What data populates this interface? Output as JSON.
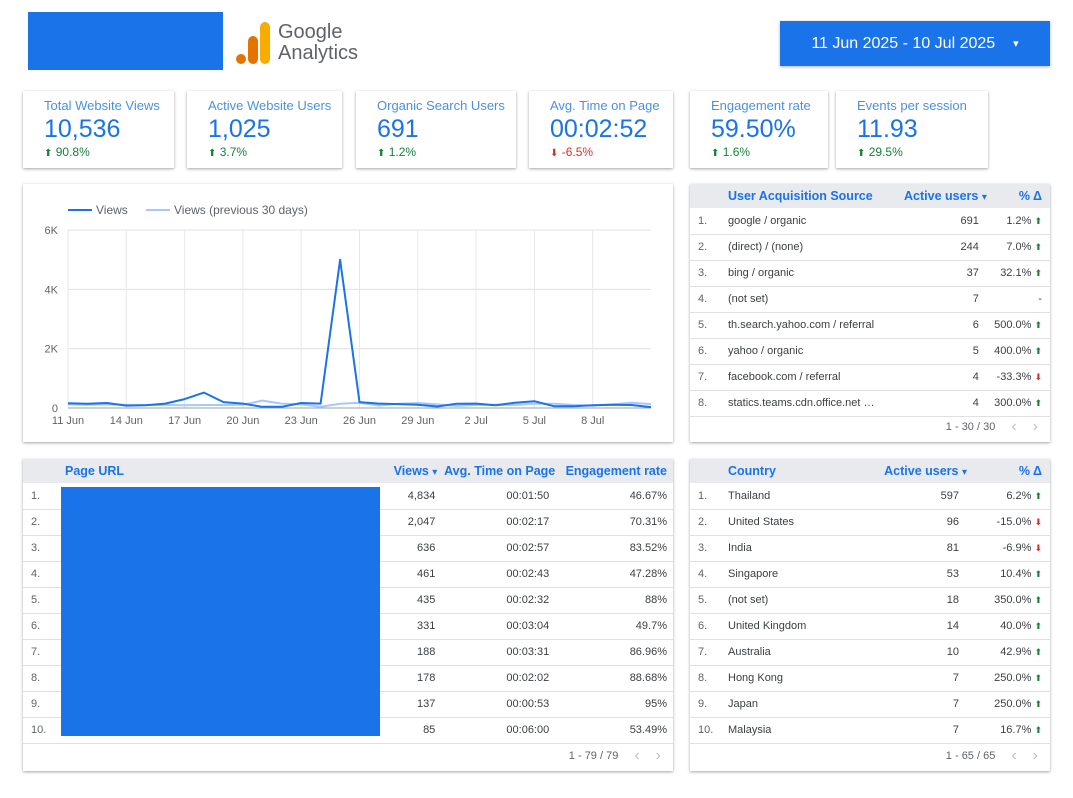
{
  "header": {
    "logo_text_line1": "Google",
    "logo_text_line2": "Analytics",
    "date_range": "11 Jun 2025 - 10 Jul 2025",
    "caret": "▾"
  },
  "kpis": [
    {
      "title": "Total Website Views",
      "value": "10,536",
      "delta": "90.8%",
      "dir": "up"
    },
    {
      "title": "Active Website Users",
      "value": "1,025",
      "delta": "3.7%",
      "dir": "up"
    },
    {
      "title": "Organic Search Users",
      "value": "691",
      "delta": "1.2%",
      "dir": "up"
    },
    {
      "title": "Avg. Time on Page",
      "value": "00:02:52",
      "delta": "-6.5%",
      "dir": "down"
    },
    {
      "title": "Engagement rate",
      "value": "59.50%",
      "delta": "1.6%",
      "dir": "up"
    },
    {
      "title": "Events per session",
      "value": "11.93",
      "delta": "29.5%",
      "dir": "up"
    }
  ],
  "colors": {
    "accent": "#1a73e8",
    "previous": "#a8c7fa",
    "up": "#188038",
    "down": "#d93025"
  },
  "chart_data": {
    "type": "line",
    "legend": [
      "Views",
      "Views (previous 30 days)"
    ],
    "legend_position": "top-left",
    "ylim": [
      0,
      6000
    ],
    "yticks": [
      "0",
      "2K",
      "4K",
      "6K"
    ],
    "xtick_labels": [
      "11 Jun",
      "14 Jun",
      "17 Jun",
      "20 Jun",
      "23 Jun",
      "26 Jun",
      "29 Jun",
      "2 Jul",
      "5 Jul",
      "8 Jul"
    ],
    "grid": true,
    "series": [
      {
        "name": "Views",
        "values": [
          160,
          140,
          170,
          80,
          90,
          150,
          300,
          520,
          200,
          150,
          40,
          40,
          170,
          150,
          5000,
          200,
          150,
          130,
          110,
          50,
          140,
          150,
          90,
          180,
          230,
          60,
          60,
          90,
          110,
          100,
          30
        ]
      },
      {
        "name": "Views (previous 30 days)",
        "values": [
          120,
          110,
          120,
          110,
          100,
          100,
          90,
          100,
          100,
          110,
          250,
          150,
          120,
          40,
          140,
          180,
          80,
          140,
          170,
          120,
          70,
          100,
          110,
          100,
          150,
          140,
          100,
          80,
          120,
          180,
          130
        ]
      }
    ]
  },
  "acq_table": {
    "headers": {
      "source": "User Acquisition Source",
      "users": "Active users",
      "sort": "▾",
      "delta": "% Δ"
    },
    "rows": [
      {
        "i": "1.",
        "source": "google / organic",
        "users": "691",
        "delta": "1.2%",
        "dir": "up"
      },
      {
        "i": "2.",
        "source": "(direct) / (none)",
        "users": "244",
        "delta": "7.0%",
        "dir": "up"
      },
      {
        "i": "3.",
        "source": "bing / organic",
        "users": "37",
        "delta": "32.1%",
        "dir": "up"
      },
      {
        "i": "4.",
        "source": "(not set)",
        "users": "7",
        "delta": "-",
        "dir": "none"
      },
      {
        "i": "5.",
        "source": "th.search.yahoo.com / referral",
        "users": "6",
        "delta": "500.0%",
        "dir": "up"
      },
      {
        "i": "6.",
        "source": "yahoo / organic",
        "users": "5",
        "delta": "400.0%",
        "dir": "up"
      },
      {
        "i": "7.",
        "source": "facebook.com / referral",
        "users": "4",
        "delta": "-33.3%",
        "dir": "down"
      },
      {
        "i": "8.",
        "source": "statics.teams.cdn.office.net …",
        "users": "4",
        "delta": "300.0%",
        "dir": "up"
      }
    ],
    "pager": "1 - 30 / 30"
  },
  "page_table": {
    "headers": {
      "url": "Page URL",
      "views": "Views",
      "sort": "▾",
      "time": "Avg. Time on Page",
      "rate": "Engagement rate"
    },
    "rows": [
      {
        "i": "1.",
        "views": "4,834",
        "time": "00:01:50",
        "rate": "46.67%"
      },
      {
        "i": "2.",
        "views": "2,047",
        "time": "00:02:17",
        "rate": "70.31%"
      },
      {
        "i": "3.",
        "views": "636",
        "time": "00:02:57",
        "rate": "83.52%"
      },
      {
        "i": "4.",
        "views": "461",
        "time": "00:02:43",
        "rate": "47.28%"
      },
      {
        "i": "5.",
        "views": "435",
        "time": "00:02:32",
        "rate": "88%"
      },
      {
        "i": "6.",
        "views": "331",
        "time": "00:03:04",
        "rate": "49.7%"
      },
      {
        "i": "7.",
        "views": "188",
        "time": "00:03:31",
        "rate": "86.96%"
      },
      {
        "i": "8.",
        "views": "178",
        "time": "00:02:02",
        "rate": "88.68%"
      },
      {
        "i": "9.",
        "views": "137",
        "time": "00:00:53",
        "rate": "95%"
      },
      {
        "i": "10.",
        "views": "85",
        "time": "00:06:00",
        "rate": "53.49%"
      }
    ],
    "pager": "1 - 79 / 79"
  },
  "country_table": {
    "headers": {
      "country": "Country",
      "users": "Active users",
      "sort": "▾",
      "delta": "% Δ"
    },
    "rows": [
      {
        "i": "1.",
        "country": "Thailand",
        "users": "597",
        "delta": "6.2%",
        "dir": "up"
      },
      {
        "i": "2.",
        "country": "United States",
        "users": "96",
        "delta": "-15.0%",
        "dir": "down"
      },
      {
        "i": "3.",
        "country": "India",
        "users": "81",
        "delta": "-6.9%",
        "dir": "down"
      },
      {
        "i": "4.",
        "country": "Singapore",
        "users": "53",
        "delta": "10.4%",
        "dir": "up"
      },
      {
        "i": "5.",
        "country": "(not set)",
        "users": "18",
        "delta": "350.0%",
        "dir": "up"
      },
      {
        "i": "6.",
        "country": "United Kingdom",
        "users": "14",
        "delta": "40.0%",
        "dir": "up"
      },
      {
        "i": "7.",
        "country": "Australia",
        "users": "10",
        "delta": "42.9%",
        "dir": "up"
      },
      {
        "i": "8.",
        "country": "Hong Kong",
        "users": "7",
        "delta": "250.0%",
        "dir": "up"
      },
      {
        "i": "9.",
        "country": "Japan",
        "users": "7",
        "delta": "250.0%",
        "dir": "up"
      },
      {
        "i": "10.",
        "country": "Malaysia",
        "users": "7",
        "delta": "16.7%",
        "dir": "up"
      }
    ],
    "pager": "1 - 65 / 65"
  },
  "pager_icons": {
    "prev": "‹",
    "next": "›"
  }
}
